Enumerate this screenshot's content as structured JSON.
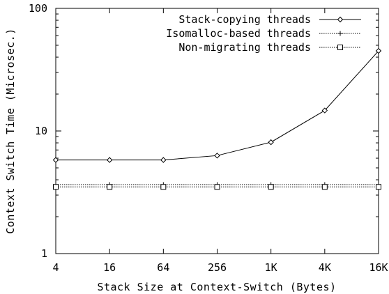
{
  "chart_data": {
    "type": "line",
    "xlabel": "Stack Size at Context-Switch (Bytes)",
    "ylabel": "Context Switch Time (Microsec.)",
    "x_scale": "log2",
    "y_scale": "log10",
    "categories": [
      "4",
      "16",
      "64",
      "256",
      "1K",
      "4K",
      "16K"
    ],
    "x_values": [
      4,
      16,
      64,
      256,
      1024,
      4096,
      16384
    ],
    "xlim": [
      4,
      16384
    ],
    "ylim": [
      1,
      100
    ],
    "y_ticks": [
      1,
      10,
      100
    ],
    "y_tick_labels": [
      "1",
      "10",
      "100"
    ],
    "grid": false,
    "legend_position": "top-right",
    "series": [
      {
        "name": "Stack-copying threads",
        "marker": "diamond",
        "line_style": "solid",
        "values": [
          5.8,
          5.8,
          5.8,
          6.3,
          8.1,
          14.7,
          45.0
        ]
      },
      {
        "name": "Isomalloc-based threads",
        "marker": "plus",
        "line_style": "dotted",
        "values": [
          3.65,
          3.65,
          3.65,
          3.65,
          3.65,
          3.65,
          3.65
        ]
      },
      {
        "name": "Non-migrating threads",
        "marker": "square",
        "line_style": "dotted",
        "values": [
          3.5,
          3.5,
          3.5,
          3.5,
          3.5,
          3.5,
          3.5
        ]
      }
    ]
  }
}
